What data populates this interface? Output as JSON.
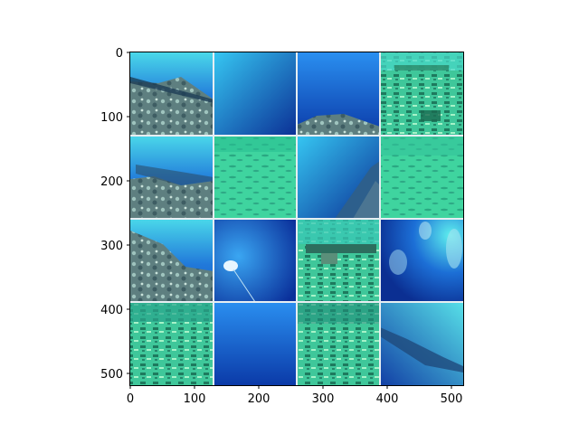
{
  "figure": {
    "type": "image-grid",
    "grid": {
      "rows": 4,
      "cols": 4
    },
    "x_ticks": [
      "0",
      "100",
      "200",
      "300",
      "400",
      "500"
    ],
    "y_ticks": [
      "0",
      "100",
      "200",
      "300",
      "400",
      "500"
    ],
    "tiles": [
      {
        "scene": "rock-ledge-sunlit"
      },
      {
        "scene": "open-blue-water"
      },
      {
        "scene": "rock-bottom-right"
      },
      {
        "scene": "seabed-wreck-timbers"
      },
      {
        "scene": "reef-rocks"
      },
      {
        "scene": "sandy-seabed"
      },
      {
        "scene": "rock-wall-diagonal"
      },
      {
        "scene": "sandy-seabed-rippled"
      },
      {
        "scene": "rocky-slope"
      },
      {
        "scene": "diver-light-beam"
      },
      {
        "scene": "wreck-structure"
      },
      {
        "scene": "divers-bubbles"
      },
      {
        "scene": "seabed-debris-green"
      },
      {
        "scene": "open-blue-water-2"
      },
      {
        "scene": "seabed-debris"
      },
      {
        "scene": "diver-silhouette"
      }
    ],
    "colors": {
      "deep_blue": "#0a3fb0",
      "mid_blue": "#1f7fe0",
      "cyan": "#3fe0e8",
      "teal_green": "#3fc79a",
      "sand": "#8fe8c0",
      "rock": "#556f73",
      "tile_border": "#e6eef2",
      "axis": "#000000"
    }
  }
}
